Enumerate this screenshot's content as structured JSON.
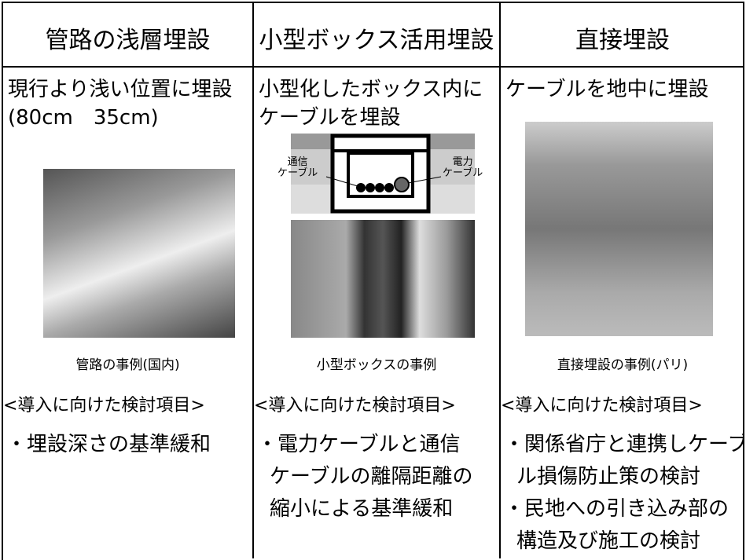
{
  "columns": [
    {
      "header": "管路の浅層埋設",
      "description": [
        "現行より浅い位置に埋設",
        "(80cm　35cm)"
      ],
      "caption": "管路の事例(国内)",
      "section": "<導入に向けた検討項目>",
      "items": [
        [
          "・埋設深さの基準緩和"
        ]
      ]
    },
    {
      "header": "小型ボックス活用埋設",
      "description": [
        "小型化したボックス内に",
        "ケーブルを埋設"
      ],
      "diagram_labels": {
        "left": [
          "通信",
          "ケーブル"
        ],
        "right": [
          "電力",
          "ケーブル"
        ]
      },
      "caption": "小型ボックスの事例",
      "section": "<導入に向けた検討項目>",
      "items": [
        [
          "・電力ケーブルと通信",
          "ケーブルの離隔距離の",
          "縮小による基準緩和"
        ]
      ]
    },
    {
      "header": "直接埋設",
      "description": [
        "ケーブルを地中に埋設"
      ],
      "caption": "直接埋設の事例(パリ)",
      "section": "<導入に向けた検討項目>",
      "items": [
        [
          "・関係省庁と連携しケーブ",
          "ル損傷防止策の検討"
        ],
        [
          "・民地への引き込み部の",
          "構造及び施工の検討"
        ]
      ]
    }
  ]
}
